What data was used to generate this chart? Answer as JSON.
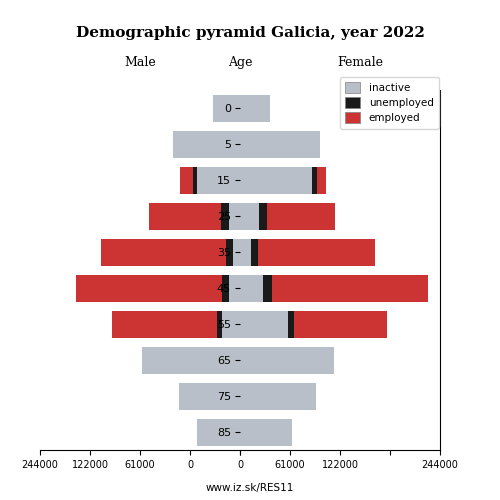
{
  "title": "Demographic pyramid Galicia, year 2022",
  "label_male": "Male",
  "label_female": "Female",
  "label_age": "Age",
  "footnote": "www.iz.sk/RES11",
  "age_groups": [
    85,
    75,
    65,
    55,
    45,
    35,
    25,
    15,
    5,
    0
  ],
  "colors": {
    "inactive": "#b8bfc8",
    "unemployed": "#1a1a1a",
    "employed": "#cc3333"
  },
  "male": {
    "inactive": [
      52000,
      75000,
      120000,
      22000,
      13000,
      8000,
      14000,
      52000,
      82000,
      33000
    ],
    "unemployed": [
      0,
      0,
      0,
      6000,
      9000,
      9000,
      9000,
      5000,
      0,
      0
    ],
    "employed": [
      0,
      0,
      0,
      128000,
      178000,
      153000,
      88000,
      16000,
      0,
      0
    ]
  },
  "female": {
    "inactive": [
      63000,
      93000,
      115000,
      58000,
      28000,
      13000,
      23000,
      88000,
      97000,
      36000
    ],
    "unemployed": [
      0,
      0,
      0,
      8000,
      11000,
      9000,
      10000,
      6000,
      0,
      0
    ],
    "employed": [
      0,
      0,
      0,
      113000,
      190000,
      143000,
      83000,
      11000,
      0,
      0
    ]
  },
  "xlim": 244000,
  "bar_height": 0.75
}
